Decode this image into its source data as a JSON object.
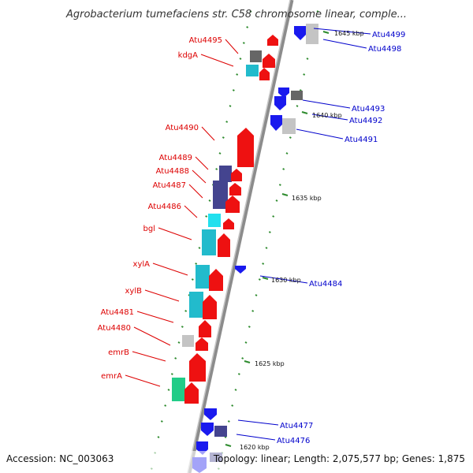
{
  "title": "Agrobacterium tumefaciens str. C58 chromosome linear, comple...",
  "footer": {
    "accession": "Accession: NC_003063",
    "summary": "Topology: linear; Length: 2,075,577 bp; Genes: 1,875"
  },
  "colors": {
    "left_label": "#dd0000",
    "right_label": "#0000cc",
    "tick": "#2e8b2e",
    "backbone": "#8c8c8c",
    "red_gene": "#ee1111",
    "blue_gene": "#1a1aee",
    "navy_gene": "#44448f",
    "cyan_gene": "#22bbcc",
    "gray_gene": "#666666",
    "lightgray_gene": "#c4c4c4",
    "green_gene": "#22cc88"
  },
  "tick_labels": [
    "1645 kbp",
    "1640 kbp",
    "1635 kbp",
    "1630 kbp",
    "1625 kbp",
    "1620 kbp"
  ],
  "left_labels": [
    "Atu4495",
    "kdgA",
    "Atu4490",
    "Atu4489",
    "Atu4488",
    "Atu4487",
    "Atu4486",
    "bgl",
    "xylA",
    "xylB",
    "Atu4481",
    "Atu4480",
    "emrB",
    "emrA"
  ],
  "right_labels": [
    "Atu4499",
    "Atu4498",
    "Atu4493",
    "Atu4492",
    "Atu4491",
    "Atu4484",
    "Atu4477",
    "Atu4476"
  ]
}
